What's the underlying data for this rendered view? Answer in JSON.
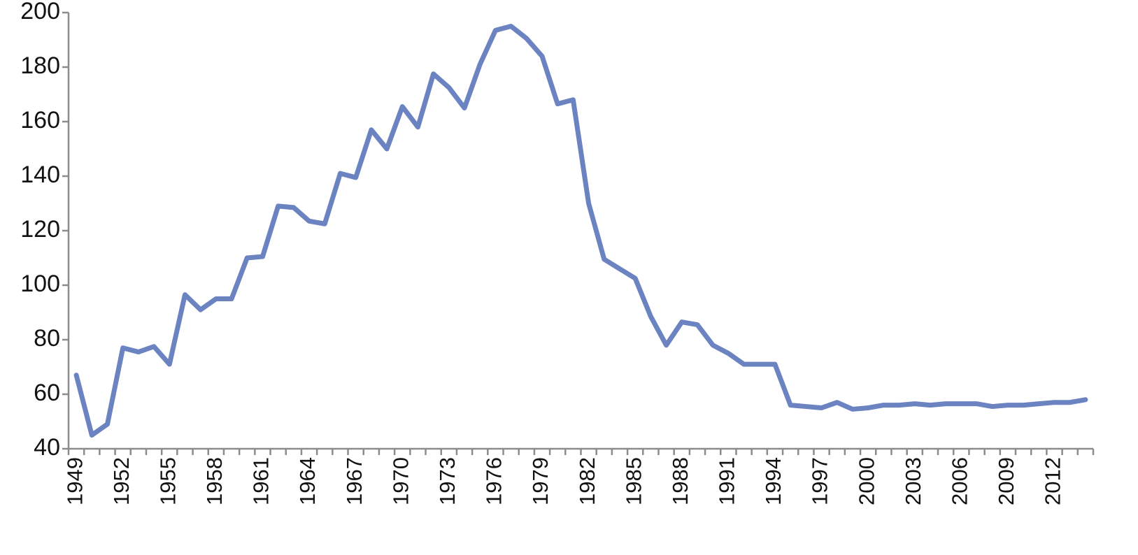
{
  "chart_data": {
    "type": "line",
    "categories": [
      "1949",
      null,
      null,
      "1952",
      null,
      null,
      "1955",
      null,
      null,
      "1958",
      null,
      null,
      "1961",
      null,
      null,
      "1964",
      null,
      null,
      "1967",
      null,
      null,
      "1970",
      null,
      null,
      "1973",
      null,
      null,
      "1976",
      null,
      null,
      "1979",
      null,
      null,
      "1982",
      null,
      null,
      "1985",
      null,
      null,
      "1988",
      null,
      null,
      "1991",
      null,
      null,
      "1994",
      null,
      null,
      "1997",
      null,
      null,
      "2000",
      null,
      null,
      "2003",
      null,
      null,
      "2006",
      null,
      null,
      "2009",
      null,
      null,
      "2012",
      null,
      null
    ],
    "series": [
      {
        "color": "#6b83c1",
        "values": [
          67,
          45,
          49,
          77,
          75.5,
          77.5,
          71,
          96.5,
          91,
          95,
          95,
          110,
          110.5,
          129,
          128.5,
          123.5,
          122.5,
          141,
          139.5,
          157,
          150,
          165.5,
          158,
          177.5,
          172.5,
          165,
          181,
          193.5,
          195,
          190.5,
          184,
          166.5,
          168,
          130,
          109.5,
          106,
          102.5,
          88.5,
          78,
          86.5,
          85.5,
          78,
          75,
          71,
          71,
          71,
          56,
          55.5,
          55,
          57,
          54.5,
          55,
          56,
          56,
          56.5,
          56,
          56.5,
          56.5,
          56.5,
          55.5,
          56,
          56,
          56.5,
          57,
          57,
          58
        ]
      }
    ],
    "ylim": [
      40,
      200
    ],
    "yticks": [
      40,
      60,
      80,
      100,
      120,
      140,
      160,
      180,
      200
    ],
    "grid": false
  }
}
